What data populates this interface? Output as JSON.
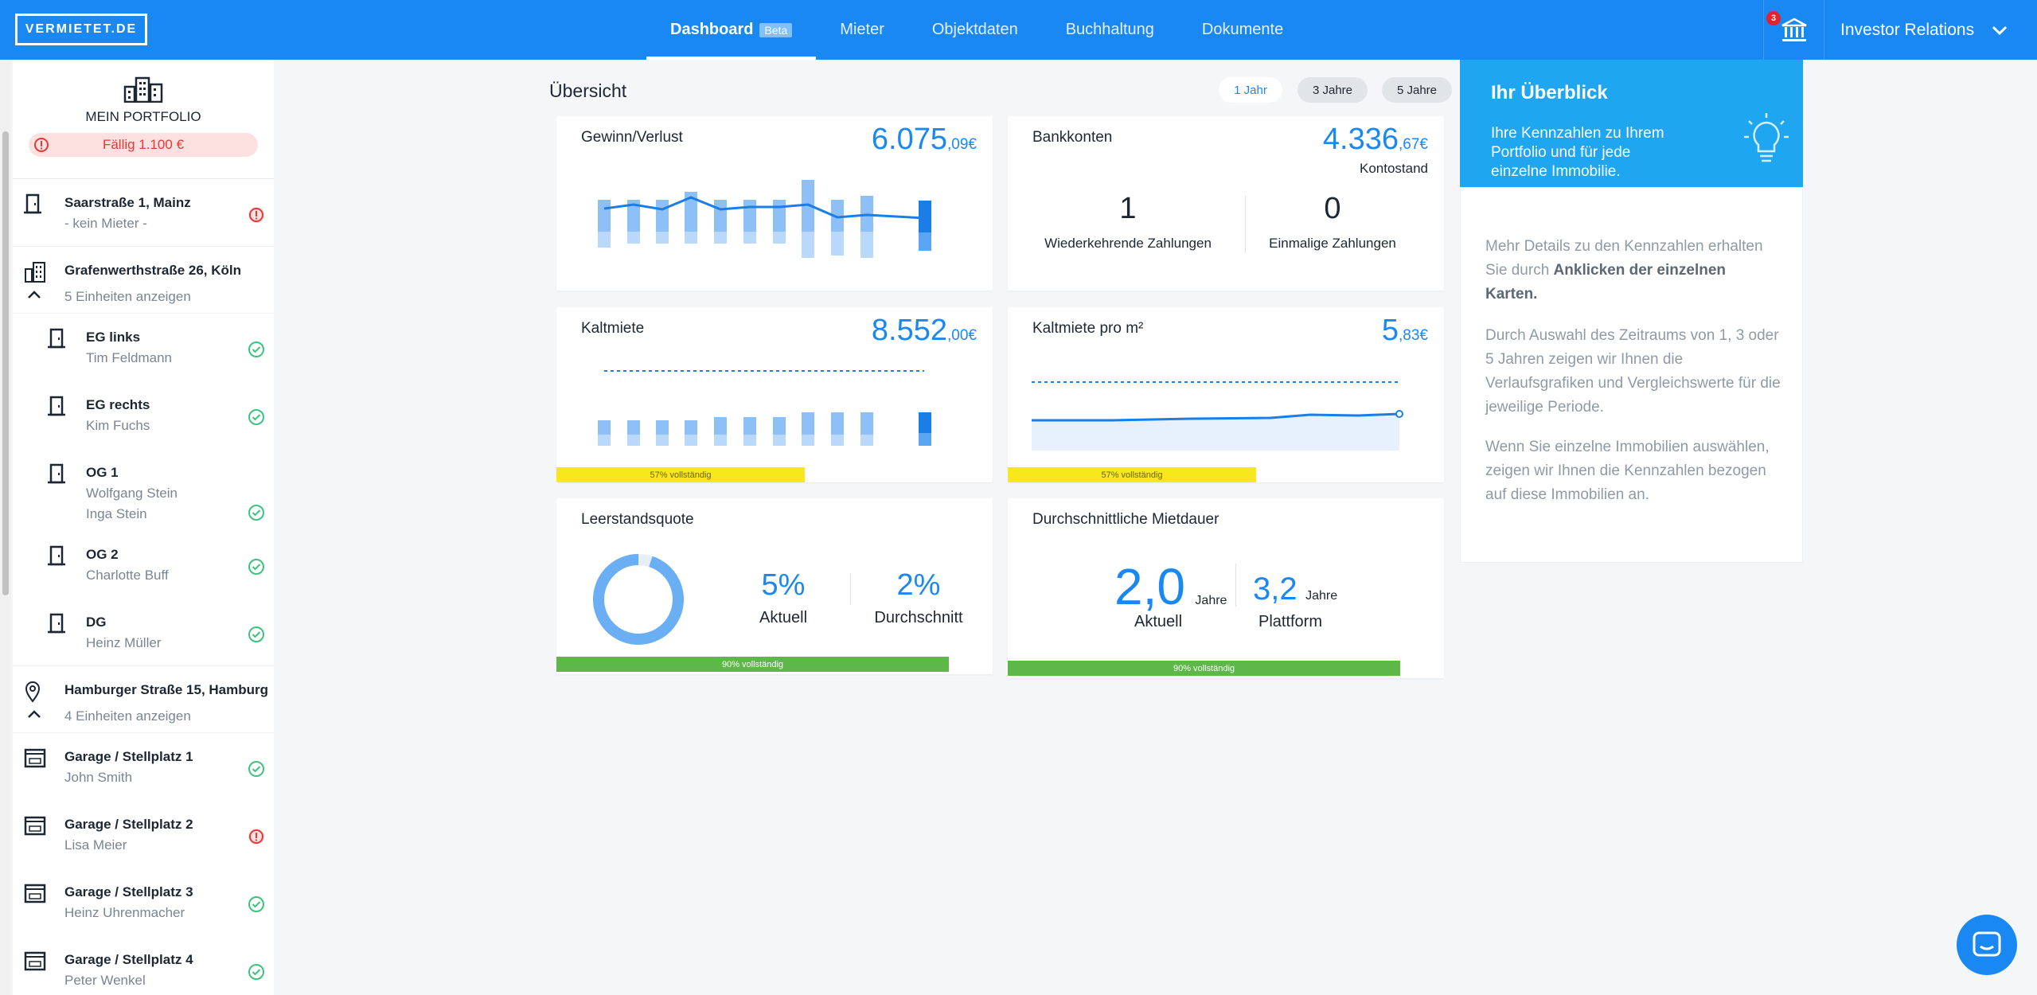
{
  "app": {
    "logo": "VERMIETET.DE"
  },
  "nav": {
    "items": [
      "Dashboard",
      "Mieter",
      "Objektdaten",
      "Buchhaltung",
      "Dokumente"
    ],
    "badge": "Beta",
    "notification_count": "3",
    "user": "Investor Relations"
  },
  "sidebar": {
    "portfolio_title": "MEIN PORTFOLIO",
    "due": "Fällig 1.100 €",
    "p1": {
      "name": "Saarstraße 1, Mainz",
      "sub": "- kein Mieter -",
      "status": "warning"
    },
    "p2": {
      "name": "Grafenwerthstraße 26, Köln",
      "expand": "5 Einheiten anzeigen"
    },
    "units": [
      {
        "name": "EG links",
        "tenant": "Tim Feldmann",
        "status": "ok"
      },
      {
        "name": "EG rechts",
        "tenant": "Kim Fuchs",
        "status": "ok"
      },
      {
        "name": "OG 1",
        "tenant": "Wolfgang Stein",
        "tenant2": "Inga Stein",
        "status": "ok"
      },
      {
        "name": "OG 2",
        "tenant": "Charlotte Buff",
        "status": "ok"
      },
      {
        "name": "DG",
        "tenant": "Heinz Müller",
        "status": "ok"
      }
    ],
    "p3": {
      "name": "Hamburger Straße 15, Hamburg",
      "expand": "4 Einheiten anzeigen"
    },
    "garages": [
      {
        "name": "Garage / Stellplatz 1",
        "tenant": "John Smith",
        "status": "ok"
      },
      {
        "name": "Garage / Stellplatz 2",
        "tenant": "Lisa Meier",
        "status": "warning"
      },
      {
        "name": "Garage / Stellplatz 3",
        "tenant": "Heinz Uhrenmacher",
        "status": "ok"
      },
      {
        "name": "Garage / Stellplatz 4",
        "tenant": "Peter Wenkel",
        "status": "ok"
      }
    ]
  },
  "main": {
    "title": "Übersicht",
    "ranges": [
      "1 Jahr",
      "3 Jahre",
      "5 Jahre"
    ],
    "profit": {
      "title": "Gewinn/Verlust",
      "value_main": "6.075",
      "value_dec": ",09€"
    },
    "bank": {
      "title": "Bankkonten",
      "value_main": "4.336",
      "value_dec": ",67€",
      "sublabel": "Kontostand",
      "recurring_value": "1",
      "recurring_label": "Wiederkehrende Zahlungen",
      "onetime_value": "0",
      "onetime_label": "Einmalige Zahlungen"
    },
    "rent": {
      "title": "Kaltmiete",
      "value_main": "8.552",
      "value_dec": ",00€",
      "progress": "57% vollständig"
    },
    "rent_sqm": {
      "title": "Kaltmiete pro m²",
      "value_main": "5",
      "value_dec": ",83€",
      "progress": "57% vollständig"
    },
    "vacancy": {
      "title": "Leerstandsquote",
      "current": "5%",
      "current_label": "Aktuell",
      "avg": "2%",
      "avg_label": "Durchschnitt",
      "progress": "90% vollständig"
    },
    "duration": {
      "title": "Durchschnittliche Mietdauer",
      "current": "2,0",
      "unit": "Jahre",
      "current_label": "Aktuell",
      "platform": "3,2",
      "platform_label": "Plattform",
      "progress": "90% vollständig"
    }
  },
  "overview": {
    "title": "Ihr Überblick",
    "subtitle": "Ihre Kennzahlen zu Ihrem Portfolio und für jede einzelne Immobilie.",
    "p1_a": "Mehr Details zu den Kennzahlen erhalten Sie durch ",
    "p1_b": "Anklicken der einzelnen Karten.",
    "p2": "Durch Auswahl des Zeitraums von 1, 3 oder 5 Jahren zeigen wir Ihnen die Verlaufsgrafiken und Vergleichswerte für die jeweilige Periode.",
    "p3": "Wenn Sie einzelne Immobilien auswählen, zeigen wir Ihnen die Kennzahlen bezogen auf diese Immobilien an."
  },
  "colors": {
    "brand": "#1a88f2",
    "ok": "#3cc47c",
    "warning": "#e53935",
    "progress_yellow": "#f6e81c",
    "progress_green": "#5db749"
  }
}
